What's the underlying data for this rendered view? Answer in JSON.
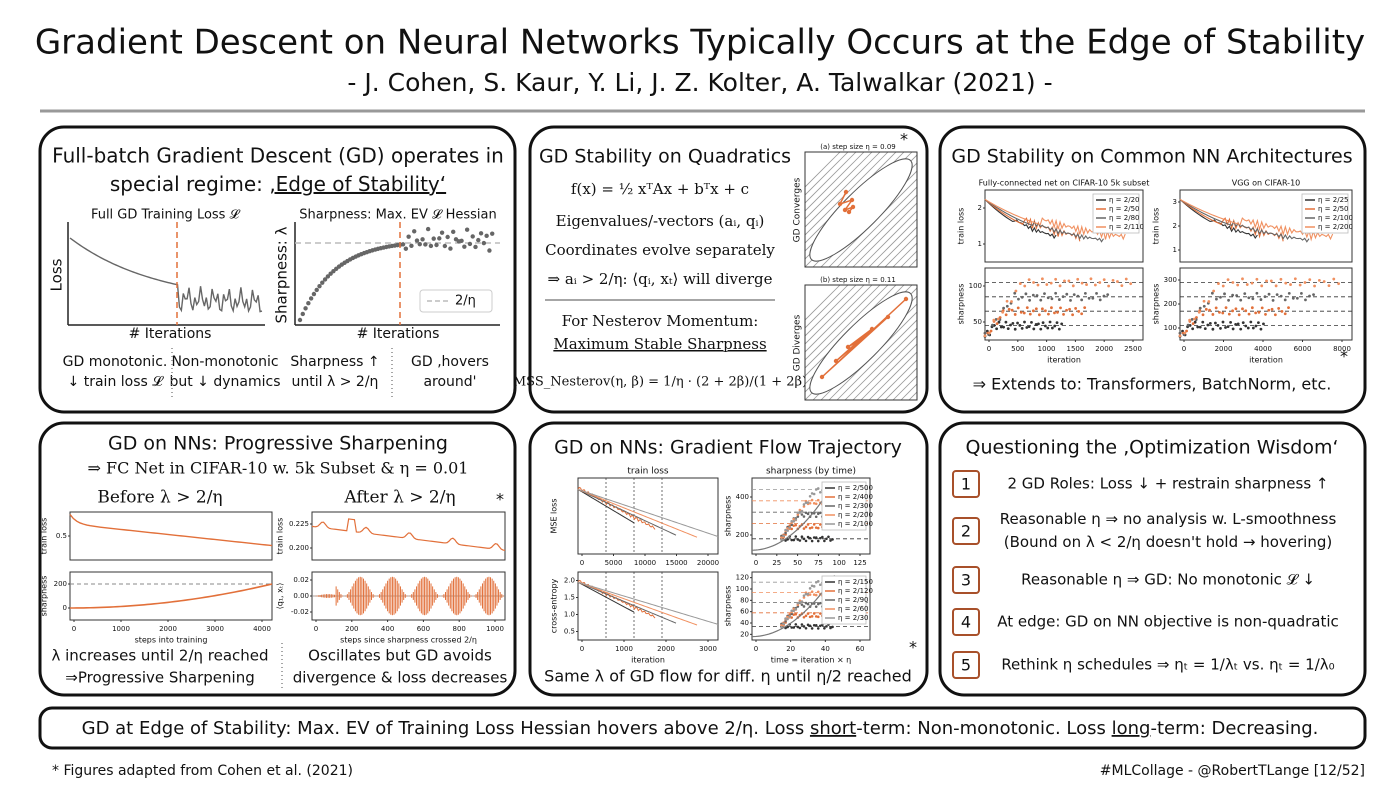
{
  "header": {
    "title": "Gradient Descent on Neural Networks Typically Occurs at the Edge of Stability",
    "subtitle": "- J. Cohen, S. Kaur, Y. Li, J. Z. Kolter, A. Talwalkar (2021) -"
  },
  "panels": [
    {
      "title_lines": [
        "Full-batch Gradient Descent (GD) operates in",
        "special regime: ",
        "‚Edge of Stability‘"
      ],
      "figures": [
        {
          "title": "Full GD Training Loss 𝓛",
          "ylabel": "Loss",
          "xlabel": "# Iterations"
        },
        {
          "title": "Sharpness: Max. EV 𝓛 Hessian",
          "ylabel": "Sharpness: λ",
          "xlabel": "# Iterations",
          "legend": [
            "2/η"
          ]
        }
      ],
      "captions": [
        [
          "GD monotonic.",
          "↓ train loss 𝓛"
        ],
        [
          "Non-monotonic",
          "but ↓ dynamics"
        ],
        [
          "Sharpness ↑",
          "until λ > 2/η"
        ],
        [
          "GD ‚hovers",
          "around'"
        ]
      ]
    },
    {
      "title": "GD Stability on Quadratics",
      "lines": [
        "f(x) = ½ xᵀAx + bᵀx + c",
        "Eigenvalues/-vectors (aᵢ, qᵢ)",
        "Coordinates evolve separately",
        "⇒ aᵢ > 2/η: ⟨qᵢ, xₜ⟩ will diverge",
        "For Nesterov Momentum:",
        "Maximum Stable Sharpness",
        "MSS_Nesterov(η, β) = 1/η · (2 + 2β)/(1 + 2β)"
      ],
      "figures": [
        {
          "title": "(a) step size η = 0.09",
          "ylabel": "GD Converges"
        },
        {
          "title": "(b) step size η = 0.11",
          "ylabel": "GD Diverges"
        }
      ],
      "star": "*"
    },
    {
      "title": "GD Stability on Common NN Architectures",
      "figures": [
        {
          "title": "Fully-connected net on CIFAR-10 5k subset",
          "ylabel": "train loss",
          "yticks": [
            1,
            2
          ],
          "legend": [
            "η = 2/20",
            "η = 2/50",
            "η = 2/80",
            "η = 2/110"
          ]
        },
        {
          "ylabel": "sharpness",
          "xlabel": "iteration",
          "yticks": [
            50,
            100
          ],
          "xticks": [
            0,
            500,
            1000,
            1500,
            2000,
            2500
          ]
        },
        {
          "title": "VGG on CIFAR-10",
          "ylabel": "train loss",
          "yticks": [
            1,
            2,
            3
          ],
          "legend": [
            "η = 2/25",
            "η = 2/50",
            "η = 2/100",
            "η = 2/200"
          ]
        },
        {
          "ylabel": "sharpness",
          "xlabel": "iteration",
          "yticks": [
            100,
            200,
            300
          ],
          "xticks": [
            0,
            2000,
            4000,
            6000,
            8000
          ]
        }
      ],
      "star": "*",
      "conclusion": "⇒ Extends to: Transformers, BatchNorm, etc."
    },
    {
      "title": "GD on NNs: Progressive Sharpening",
      "subtitle": "⇒ FC Net in CIFAR-10 w. 5k Subset & η = 0.01",
      "headings": [
        "Before λ > 2/η",
        "After λ > 2/η"
      ],
      "figures": [
        {
          "ylabel": "train loss",
          "yticks": [
            0.5
          ]
        },
        {
          "ylabel": "sharpness",
          "xlabel": "steps into training",
          "yticks": [
            0,
            200
          ],
          "xticks": [
            0,
            1000,
            2000,
            3000,
            4000
          ]
        },
        {
          "ylabel": "train loss",
          "yticks": [
            "0.200",
            0.225
          ]
        },
        {
          "ylabel": "⟨q₁, xₜ⟩",
          "xlabel": "steps since sharpness crossed 2/η",
          "yticks": [
            -0.02,
            "0.00",
            0.02
          ],
          "xticks": [
            0,
            200,
            400,
            600,
            800,
            1000
          ]
        }
      ],
      "star": "*",
      "captions": [
        [
          "λ increases until 2/η reached",
          "⇒Progressive Sharpening"
        ],
        [
          "Oscillates but GD avoids",
          "divergence & loss decreases"
        ]
      ]
    },
    {
      "title": "GD on NNs: Gradient Flow Trajectory",
      "figures": [
        {
          "title": "train loss",
          "ylabel": "MSE loss",
          "xticks": [
            0,
            5000,
            10000,
            15000,
            20000
          ]
        },
        {
          "title": "sharpness (by time)",
          "ylabel": "sharpness",
          "yticks": [
            200,
            400
          ],
          "xticks": [
            0,
            25,
            50,
            75,
            100,
            125
          ],
          "legend": [
            "η = 2/500",
            "η = 2/400",
            "η = 2/300",
            "η = 2/200",
            "η = 2/100"
          ]
        },
        {
          "ylabel": "cross-entropy",
          "xlabel": "iteration",
          "yticks": [
            "0.5",
            "1.0",
            "1.5",
            "2.0"
          ],
          "xticks": [
            0,
            1000,
            2000,
            3000
          ]
        },
        {
          "ylabel": "sharpness",
          "xlabel": "time = iteration × η",
          "yticks": [
            20,
            40,
            60,
            80,
            100,
            120
          ],
          "xticks": [
            0,
            20,
            40,
            60
          ],
          "legend": [
            "η = 2/150",
            "η = 2/120",
            "η = 2/90",
            "η = 2/60",
            "η = 2/30"
          ]
        }
      ],
      "star": "*",
      "caption": "Same λ of GD flow for diff. η until η/2 reached"
    },
    {
      "title": "Questioning the ‚Optimization Wisdom‘",
      "items": [
        {
          "number": 1,
          "lines": [
            "2 GD Roles: Loss ↓ + restrain sharpness ↑"
          ]
        },
        {
          "number": 2,
          "lines": [
            "Reasonable η ⇒ no analysis w. L-smoothness",
            "(Bound on λ < 2/η doesn't hold → hovering)"
          ]
        },
        {
          "number": 3,
          "lines": [
            "Reasonable η ⇒ GD: No monotonic 𝓛 ↓"
          ]
        },
        {
          "number": 4,
          "lines": [
            "At edge: GD on NN objective is non-quadratic"
          ]
        },
        {
          "number": 5,
          "lines": [
            "Rethink η schedules ⇒ ηₜ = 1/λₜ vs. ηₜ = 1/λ₀"
          ]
        }
      ]
    }
  ],
  "summary": [
    "GD at Edge of Stability: Max. EV of Training Loss Hessian hovers above 2/η. Loss ",
    "short",
    "-term: Non-monotonic. Loss ",
    "long",
    "-term: Decreasing."
  ],
  "footer": {
    "note": "* Figures adapted from Cohen et al. (2021)",
    "credit": "#MLCollage - @RobertTLange [12/52]"
  }
}
